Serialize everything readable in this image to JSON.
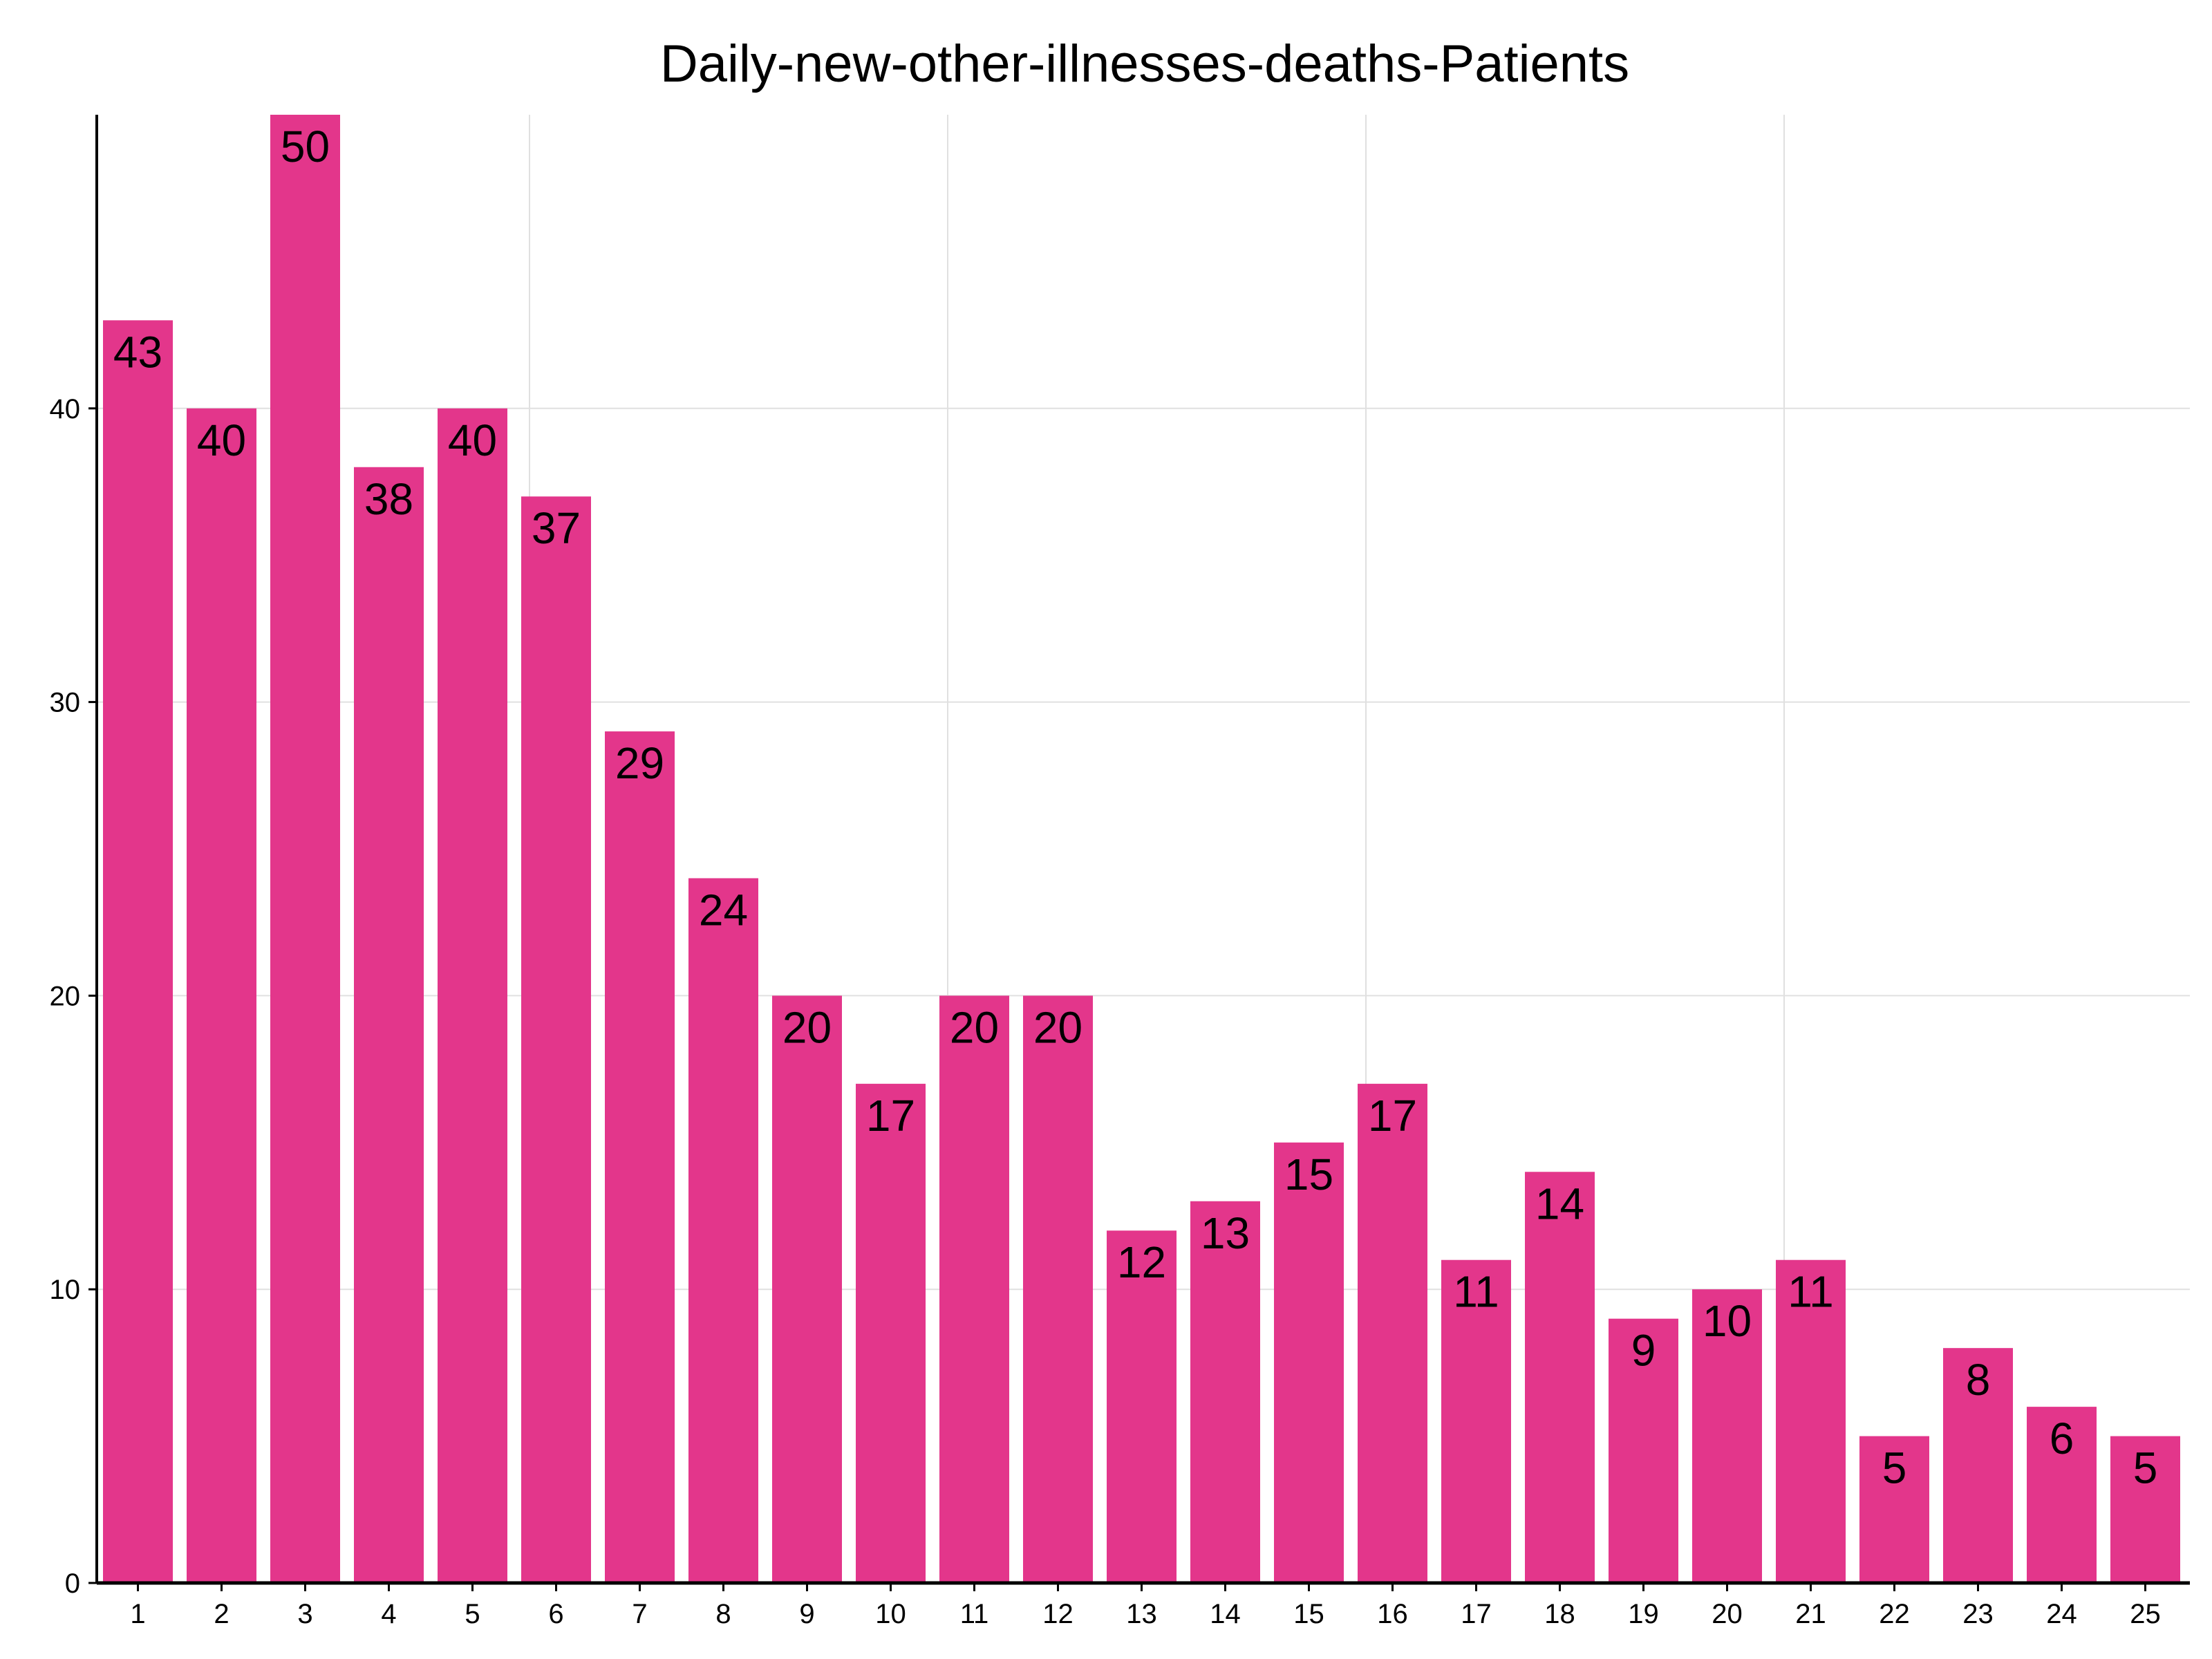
{
  "chart_data": {
    "type": "bar",
    "title": "Daily-new-other-illnesses-deaths-Patients",
    "xlabel": "",
    "ylabel": "",
    "categories": [
      "1",
      "2",
      "3",
      "4",
      "5",
      "6",
      "7",
      "8",
      "9",
      "10",
      "11",
      "12",
      "13",
      "14",
      "15",
      "16",
      "17",
      "18",
      "19",
      "20",
      "21",
      "22",
      "23",
      "24",
      "25"
    ],
    "values": [
      43,
      40,
      50,
      38,
      40,
      37,
      29,
      24,
      20,
      17,
      20,
      20,
      12,
      13,
      15,
      17,
      11,
      14,
      9,
      10,
      11,
      5,
      8,
      6,
      5
    ],
    "data_labels": [
      "43",
      "40",
      "50",
      "38",
      "40",
      "37",
      "29",
      "24",
      "20",
      "17",
      "20",
      "20",
      "12",
      "13",
      "15",
      "17",
      "11",
      "14",
      "9",
      "10",
      "11",
      "5",
      "8",
      "6",
      "5"
    ],
    "ylim": [
      0,
      50
    ],
    "y_ticks": [
      0,
      10,
      20,
      30,
      40
    ],
    "y_tick_labels": [
      "0",
      "10",
      "20",
      "30",
      "40"
    ],
    "grid": true,
    "legend": "none",
    "colors": {
      "bar": "#e3368b",
      "grid": "#e0e0e0",
      "axis": "#000000"
    }
  }
}
